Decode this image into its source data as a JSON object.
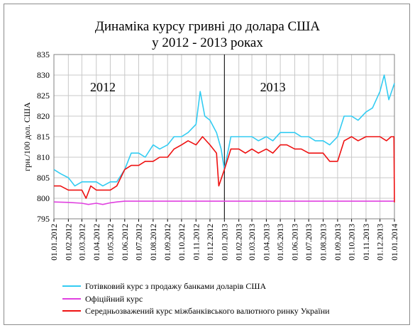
{
  "chart_data": {
    "type": "line",
    "title": [
      "Динаміка курсу гривні до долара США",
      "у 2012 - 2013 роках"
    ],
    "ylabel": "грн./100 дол. США",
    "xlabel": "",
    "ylim": [
      795,
      835
    ],
    "yticks": [
      795,
      800,
      805,
      810,
      815,
      820,
      825,
      830,
      835
    ],
    "xlim": [
      "2012-01-01",
      "2014-01-01"
    ],
    "xticks": [
      "01.01.2012",
      "01.02.2012",
      "01.03.2012",
      "01.04.2012",
      "01.05.2012",
      "01.06.2012",
      "01.07.2012",
      "01.08.2012",
      "01.09.2012",
      "01.10.2012",
      "01.11.2012",
      "01.12.2012",
      "01.01.2013",
      "01.02.2013",
      "01.03.2013",
      "01.04.2013",
      "01.05.2013",
      "01.06.2013",
      "01.07.2013",
      "01.08.2013",
      "01.09.2013",
      "01.10.2013",
      "01.11.2013",
      "01.12.2013",
      "01.01.2014"
    ],
    "grid": true,
    "legend_position": "bottom",
    "annotations": [
      {
        "text": "2012",
        "x": "2012-04-15",
        "y": 826
      },
      {
        "text": "2013",
        "x": "2013-04-15",
        "y": 826
      }
    ],
    "divider_x": "2013-01-01",
    "series": [
      {
        "name": "Готівковий курс з продажу банками доларів США",
        "color": "#33ccf2",
        "x": [
          "2012-01-01",
          "2012-01-15",
          "2012-02-01",
          "2012-02-15",
          "2012-03-01",
          "2012-03-15",
          "2012-04-01",
          "2012-04-15",
          "2012-05-01",
          "2012-05-15",
          "2012-06-01",
          "2012-06-15",
          "2012-07-01",
          "2012-07-15",
          "2012-08-01",
          "2012-08-15",
          "2012-09-01",
          "2012-09-15",
          "2012-10-01",
          "2012-10-15",
          "2012-11-01",
          "2012-11-10",
          "2012-11-20",
          "2012-12-01",
          "2012-12-15",
          "2012-12-25",
          "2013-01-01",
          "2013-01-15",
          "2013-02-01",
          "2013-02-15",
          "2013-03-01",
          "2013-03-15",
          "2013-04-01",
          "2013-04-15",
          "2013-05-01",
          "2013-05-15",
          "2013-06-01",
          "2013-06-15",
          "2013-07-01",
          "2013-07-15",
          "2013-08-01",
          "2013-08-15",
          "2013-09-01",
          "2013-09-15",
          "2013-10-01",
          "2013-10-15",
          "2013-11-01",
          "2013-11-15",
          "2013-12-01",
          "2013-12-10",
          "2013-12-20",
          "2014-01-01"
        ],
        "y": [
          807,
          806,
          805,
          803,
          804,
          804,
          804,
          803,
          804,
          804,
          807,
          811,
          811,
          810,
          813,
          812,
          813,
          815,
          815,
          816,
          818,
          826,
          820,
          819,
          816,
          812,
          807,
          815,
          815,
          815,
          815,
          814,
          815,
          814,
          816,
          816,
          816,
          815,
          815,
          814,
          814,
          813,
          815,
          820,
          820,
          819,
          821,
          822,
          826,
          830,
          824,
          828
        ]
      },
      {
        "name": "Офіційний курс",
        "color": "#e040e0",
        "x": [
          "2012-01-01",
          "2012-02-01",
          "2012-03-01",
          "2012-03-15",
          "2012-04-01",
          "2012-04-15",
          "2012-05-01",
          "2012-05-15",
          "2012-06-01",
          "2012-09-01",
          "2013-01-01",
          "2013-06-01",
          "2014-01-01"
        ],
        "y": [
          799.1,
          799.0,
          798.8,
          798.5,
          798.8,
          798.5,
          798.9,
          799.1,
          799.3,
          799.3,
          799.3,
          799.3,
          799.3
        ]
      },
      {
        "name": "Середньозважений курс міжбанківського валютного ринку України",
        "color": "#ee1111",
        "x": [
          "2012-01-01",
          "2012-01-15",
          "2012-02-01",
          "2012-02-15",
          "2012-03-01",
          "2012-03-10",
          "2012-03-20",
          "2012-04-01",
          "2012-04-15",
          "2012-05-01",
          "2012-05-15",
          "2012-06-01",
          "2012-06-15",
          "2012-07-01",
          "2012-07-15",
          "2012-08-01",
          "2012-08-15",
          "2012-09-01",
          "2012-09-15",
          "2012-10-01",
          "2012-10-15",
          "2012-11-01",
          "2012-11-15",
          "2012-12-01",
          "2012-12-15",
          "2012-12-20",
          "2013-01-01",
          "2013-01-15",
          "2013-02-01",
          "2013-02-15",
          "2013-03-01",
          "2013-03-15",
          "2013-04-01",
          "2013-04-15",
          "2013-05-01",
          "2013-05-15",
          "2013-06-01",
          "2013-06-15",
          "2013-07-01",
          "2013-07-15",
          "2013-08-01",
          "2013-08-15",
          "2013-09-01",
          "2013-09-15",
          "2013-10-01",
          "2013-10-15",
          "2013-11-01",
          "2013-11-15",
          "2013-12-01",
          "2013-12-15",
          "2013-12-25",
          "2013-12-31",
          "2014-01-01"
        ],
        "y": [
          803,
          803,
          802,
          802,
          802,
          800,
          803,
          802,
          802,
          802,
          803,
          807,
          808,
          808,
          809,
          809,
          810,
          810,
          812,
          813,
          814,
          813,
          815,
          813,
          811,
          803,
          807,
          812,
          812,
          811,
          812,
          811,
          812,
          811,
          813,
          813,
          812,
          812,
          811,
          811,
          811,
          809,
          809,
          814,
          815,
          814,
          815,
          815,
          815,
          814,
          815,
          815,
          799
        ]
      }
    ]
  }
}
